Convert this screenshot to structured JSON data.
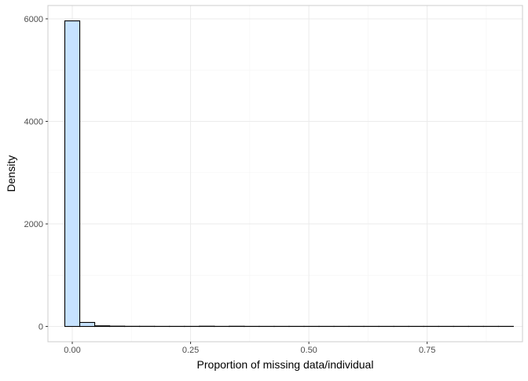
{
  "chart_data": {
    "type": "bar",
    "title": "",
    "xlabel": "Proportion of missing data/individual",
    "ylabel": "Density",
    "xlim": [
      -0.0515,
      0.9515
    ],
    "ylim": [
      -298,
      6260
    ],
    "xticks": [
      0.0,
      0.25,
      0.5,
      0.75
    ],
    "xtick_labels": [
      "0.00",
      "0.25",
      "0.50",
      "0.75"
    ],
    "yticks": [
      0,
      2000,
      4000,
      6000
    ],
    "ytick_labels": [
      "0",
      "2000",
      "4000",
      "6000"
    ],
    "grid": true,
    "bin_width": 0.0316,
    "bins": [
      {
        "x0": -0.0158,
        "x1": 0.0158,
        "value": 5960
      },
      {
        "x0": 0.0158,
        "x1": 0.0474,
        "value": 78
      },
      {
        "x0": 0.0474,
        "x1": 0.079,
        "value": 12
      },
      {
        "x0": 0.079,
        "x1": 0.1106,
        "value": 6
      },
      {
        "x0": 0.1106,
        "x1": 0.1422,
        "value": 3
      },
      {
        "x0": 0.1422,
        "x1": 0.1738,
        "value": 3
      },
      {
        "x0": 0.1738,
        "x1": 0.2054,
        "value": 2
      },
      {
        "x0": 0.2054,
        "x1": 0.237,
        "value": 2
      },
      {
        "x0": 0.237,
        "x1": 0.2686,
        "value": 2
      },
      {
        "x0": 0.2686,
        "x1": 0.3002,
        "value": 5
      },
      {
        "x0": 0.3002,
        "x1": 0.3318,
        "value": 2
      },
      {
        "x0": 0.3318,
        "x1": 0.3634,
        "value": 4
      },
      {
        "x0": 0.3634,
        "x1": 0.395,
        "value": 2
      },
      {
        "x0": 0.395,
        "x1": 0.4266,
        "value": 2
      },
      {
        "x0": 0.4266,
        "x1": 0.4582,
        "value": 2
      },
      {
        "x0": 0.4582,
        "x1": 0.4898,
        "value": 2
      },
      {
        "x0": 0.4898,
        "x1": 0.5214,
        "value": 2
      },
      {
        "x0": 0.5214,
        "x1": 0.553,
        "value": 2
      },
      {
        "x0": 0.553,
        "x1": 0.5846,
        "value": 2
      },
      {
        "x0": 0.5846,
        "x1": 0.6162,
        "value": 2
      },
      {
        "x0": 0.6162,
        "x1": 0.6478,
        "value": 2
      },
      {
        "x0": 0.6478,
        "x1": 0.6794,
        "value": 2
      },
      {
        "x0": 0.6794,
        "x1": 0.711,
        "value": 2
      },
      {
        "x0": 0.711,
        "x1": 0.7426,
        "value": 2
      },
      {
        "x0": 0.7426,
        "x1": 0.7742,
        "value": 2
      },
      {
        "x0": 0.7742,
        "x1": 0.8058,
        "value": 2
      },
      {
        "x0": 0.8058,
        "x1": 0.8374,
        "value": 2
      },
      {
        "x0": 0.8374,
        "x1": 0.869,
        "value": 2
      },
      {
        "x0": 0.869,
        "x1": 0.9006,
        "value": 2
      },
      {
        "x0": 0.9006,
        "x1": 0.9322,
        "value": 2
      }
    ],
    "colors": {
      "bar_fill": "#c6e2ff",
      "bar_stroke": "#000000",
      "panel_border": "#cccccc",
      "grid_major": "#ebebeb",
      "grid_minor": "#f5f5f5",
      "tick_text": "#4d4d4d",
      "axis_title": "#000000"
    }
  }
}
